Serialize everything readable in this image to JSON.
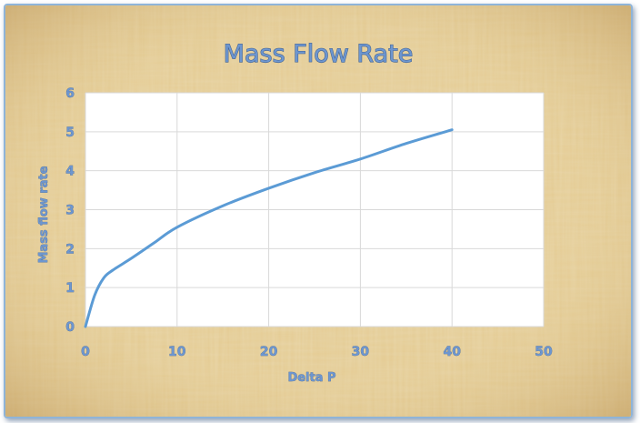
{
  "chart_data": {
    "type": "line",
    "title": "Mass Flow Rate",
    "xlabel": "Delta P",
    "ylabel": "Mass flow rate",
    "xlim": [
      0,
      50
    ],
    "ylim": [
      0,
      6
    ],
    "x_ticks": [
      "0",
      "10",
      "20",
      "30",
      "40",
      "50"
    ],
    "y_ticks": [
      "0",
      "1",
      "2",
      "3",
      "4",
      "5",
      "6"
    ],
    "grid": true,
    "legend": "none",
    "series": [
      {
        "color": "#5b9bd5",
        "x": [
          0,
          1,
          2,
          3,
          5,
          7.5,
          10,
          15,
          20,
          25,
          30,
          35,
          40
        ],
        "y": [
          0,
          0.8,
          1.25,
          1.45,
          1.75,
          2.15,
          2.55,
          3.1,
          3.55,
          3.95,
          4.3,
          4.7,
          5.05
        ]
      }
    ],
    "background": "papyrus texture",
    "plot_area_color": "#ffffff"
  }
}
